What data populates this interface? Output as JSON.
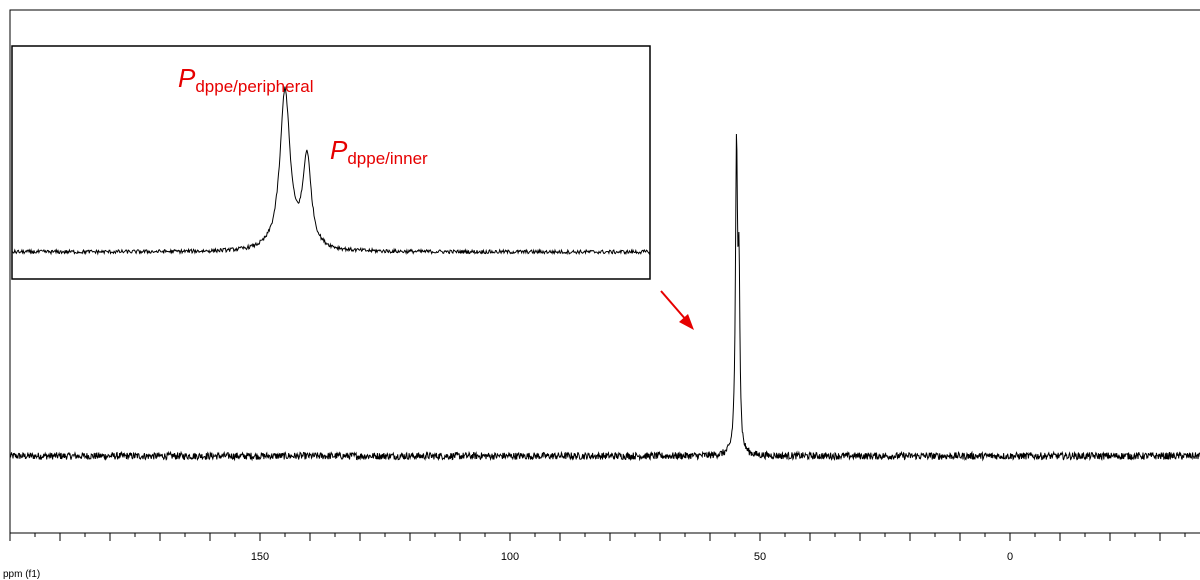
{
  "chart_data": {
    "type": "line",
    "title": "",
    "xlabel": "ppm (f1)",
    "ylabel": "",
    "x_reversed": true,
    "xlim": [
      200,
      -38
    ],
    "x_ticks_labeled": [
      150,
      100,
      50,
      0
    ],
    "x_tick_labels": [
      "150",
      "100",
      "50",
      "0"
    ],
    "x_tick_step_minor": 10,
    "grid": false,
    "series": [
      {
        "baseline": 0,
        "noise": 0.012,
        "peaks": [
          {
            "ppm": 54.7,
            "intensity": 1.0,
            "width": 0.25
          },
          {
            "ppm": 54.2,
            "intensity": 0.55,
            "width": 0.2
          }
        ]
      }
    ],
    "inset": {
      "peaks": [
        {
          "ppm": 54.7,
          "intensity": 1.0
        },
        {
          "ppm": 54.2,
          "intensity": 0.6
        }
      ],
      "annotations": [
        {
          "main": "P",
          "sub": "dppe/peripheral"
        },
        {
          "main": "P",
          "sub": "dppe/inner"
        }
      ]
    },
    "arrow": {
      "points_to_ppm": 54.7,
      "color": "#e60000"
    },
    "line_color": "#000000"
  }
}
